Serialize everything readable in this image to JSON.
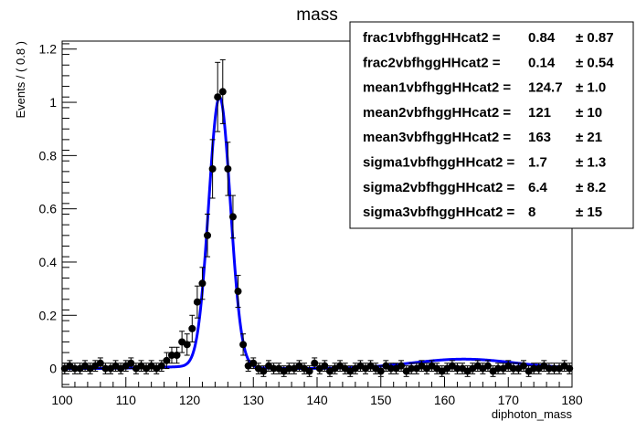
{
  "chart_data": {
    "type": "scatter",
    "title": "mass",
    "xlabel": "diphoton_mass",
    "ylabel": "Events / ( 0.8 )",
    "xlim": [
      100,
      180
    ],
    "ylim": [
      -0.07,
      1.23
    ],
    "xticks": [
      100,
      110,
      120,
      130,
      140,
      150,
      160,
      170,
      180
    ],
    "xtick_labels": [
      "100",
      "110",
      "120",
      "130",
      "140",
      "150",
      "160",
      "170",
      "180"
    ],
    "yticks": [
      0,
      0.2,
      0.4,
      0.6,
      0.8,
      1,
      1.2
    ],
    "ytick_labels": [
      "0",
      "0.2",
      "0.4",
      "0.6",
      "0.8",
      "1",
      "1.2"
    ],
    "grid": false,
    "series": [
      {
        "kind": "points",
        "color": "#000000",
        "x": [
          100.4,
          101.2,
          102.0,
          102.8,
          103.6,
          104.4,
          105.2,
          106.0,
          106.8,
          107.6,
          108.4,
          109.2,
          110.0,
          110.8,
          111.6,
          112.4,
          113.2,
          114.0,
          114.8,
          115.6,
          116.4,
          117.2,
          118.0,
          118.8,
          119.6,
          120.4,
          121.2,
          122.0,
          122.8,
          123.6,
          124.4,
          125.2,
          126.0,
          126.8,
          127.6,
          128.4,
          129.2,
          130.0,
          130.8,
          131.6,
          132.4,
          133.2,
          134.0,
          134.8,
          135.6,
          136.4,
          137.2,
          138.0,
          138.8,
          139.6,
          140.4,
          141.2,
          142.0,
          142.8,
          143.6,
          144.4,
          145.2,
          146.0,
          146.8,
          147.6,
          148.4,
          149.2,
          150.0,
          150.8,
          151.6,
          152.4,
          153.2,
          154.0,
          154.8,
          155.6,
          156.4,
          157.2,
          158.0,
          158.8,
          159.6,
          160.4,
          161.2,
          162.0,
          162.8,
          163.6,
          164.4,
          165.2,
          166.0,
          166.8,
          167.6,
          168.4,
          169.2,
          170.0,
          170.8,
          171.6,
          172.4,
          173.2,
          174.0,
          174.8,
          175.6,
          176.4,
          177.2,
          178.0,
          178.8,
          179.6
        ],
        "y": [
          0.0,
          0.01,
          0.0,
          0.0,
          0.01,
          0.0,
          0.01,
          0.02,
          0.0,
          0.0,
          0.01,
          0.0,
          0.01,
          0.02,
          0.0,
          0.01,
          0.0,
          0.01,
          0.0,
          0.01,
          0.03,
          0.05,
          0.05,
          0.1,
          0.09,
          0.15,
          0.25,
          0.32,
          0.5,
          0.75,
          1.02,
          1.04,
          0.75,
          0.57,
          0.29,
          0.09,
          0.01,
          0.02,
          0.0,
          -0.01,
          0.01,
          0.0,
          0.0,
          -0.01,
          0.0,
          0.0,
          0.01,
          0.0,
          -0.01,
          0.02,
          0.0,
          0.01,
          -0.01,
          0.0,
          0.01,
          0.0,
          -0.01,
          0.0,
          0.01,
          0.0,
          0.01,
          0.0,
          -0.01,
          0.01,
          0.0,
          0.0,
          0.01,
          -0.01,
          0.0,
          0.0,
          0.01,
          0.0,
          0.01,
          0.0,
          -0.01,
          0.0,
          0.01,
          0.0,
          0.0,
          -0.01,
          0.0,
          0.01,
          0.0,
          0.01,
          -0.01,
          0.0,
          0.0,
          0.01,
          0.0,
          0.0,
          0.01,
          -0.01,
          0.0,
          0.0,
          0.01,
          0.0,
          0.0,
          0.0,
          0.01,
          0.0
        ],
        "yerr": [
          0.02,
          0.02,
          0.02,
          0.02,
          0.02,
          0.02,
          0.02,
          0.02,
          0.02,
          0.02,
          0.02,
          0.02,
          0.02,
          0.02,
          0.02,
          0.02,
          0.02,
          0.02,
          0.02,
          0.02,
          0.03,
          0.03,
          0.03,
          0.04,
          0.04,
          0.05,
          0.06,
          0.06,
          0.08,
          0.11,
          0.13,
          0.12,
          0.1,
          0.08,
          0.06,
          0.04,
          0.02,
          0.02,
          0.02,
          0.02,
          0.02,
          0.02,
          0.02,
          0.02,
          0.02,
          0.02,
          0.02,
          0.02,
          0.02,
          0.02,
          0.02,
          0.02,
          0.02,
          0.02,
          0.02,
          0.02,
          0.02,
          0.02,
          0.02,
          0.02,
          0.02,
          0.02,
          0.02,
          0.02,
          0.02,
          0.02,
          0.02,
          0.02,
          0.02,
          0.02,
          0.02,
          0.02,
          0.02,
          0.02,
          0.02,
          0.02,
          0.02,
          0.02,
          0.02,
          0.02,
          0.02,
          0.02,
          0.02,
          0.02,
          0.02,
          0.02,
          0.02,
          0.02,
          0.02,
          0.02,
          0.02,
          0.02,
          0.02,
          0.02,
          0.02,
          0.02,
          0.02,
          0.02,
          0.02,
          0.02
        ]
      },
      {
        "kind": "fit-curve",
        "color": "#0000ff",
        "model": {
          "frac1": 0.84,
          "frac2": 0.14,
          "mean1": 124.7,
          "mean2": 121,
          "mean3": 163,
          "sigma1": 1.7,
          "sigma2": 6.4,
          "sigma3": 8,
          "amplitude": 1.02
        }
      }
    ],
    "legend_placement": "top-right",
    "legend_entries": [
      {
        "name": "frac1vbfhggHHcat2 =",
        "value": "0.84",
        "error": "± 0.87"
      },
      {
        "name": "frac2vbfhggHHcat2 =",
        "value": "0.14",
        "error": "± 0.54"
      },
      {
        "name": "mean1vbfhggHHcat2 =",
        "value": "124.7",
        "error": "± 1.0"
      },
      {
        "name": "mean2vbfhggHHcat2 =",
        "value": "121",
        "error": "± 10"
      },
      {
        "name": "mean3vbfhggHHcat2 =",
        "value": "163",
        "error": "± 21"
      },
      {
        "name": "sigma1vbfhggHHcat2 =",
        "value": "1.7",
        "error": "± 1.3"
      },
      {
        "name": "sigma2vbfhggHHcat2 =",
        "value": "6.4",
        "error": "± 8.2"
      },
      {
        "name": "sigma3vbfhggHHcat2 =",
        "value": "8",
        "error": "± 15"
      }
    ]
  }
}
